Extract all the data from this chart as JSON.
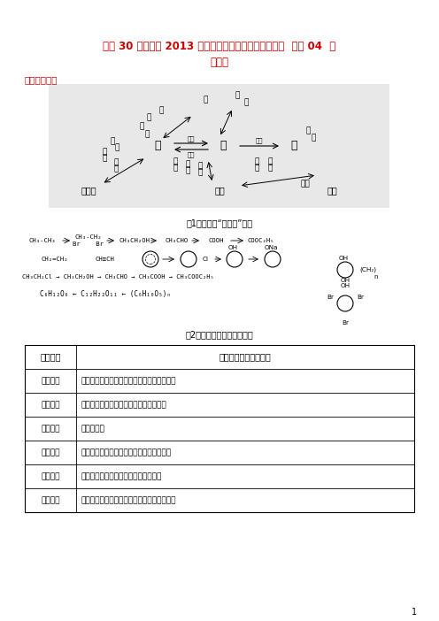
{
  "title_line1": "考前 30 天之备战 2013 高考化学冲刺押题系列第四部分  专题 04  有",
  "title_line2": "机化学",
  "section_header": "结构网络图解",
  "fig1_caption": "图1有机物的“金三角”地带",
  "fig2_caption": "图2有机物代表物的衍变关系",
  "table_header_col1": "反应类型",
  "table_header_col2": "涉及的主要有机物类别",
  "table_rows": [
    [
      "取代反应",
      "饱和烃、苯和苯的同系物、醇、苯酚、卦代烃"
    ],
    [
      "加成反应",
      "不饱和烃、苯和苯的同系物、醉、葡萄糖"
    ],
    [
      "消去反应",
      "醇、卦代烃"
    ],
    [
      "酯化反应",
      "醇、羲酸、糖类（葡萄糖、淠粉、纤维素）"
    ],
    [
      "水解反应",
      "卦代烃、羲酸酯、二糖、多糖、蛋白质"
    ],
    [
      "氧化反应",
      "不饱和烃、烃基苯、醇、醉、甲酸酯、葡萄糖"
    ]
  ],
  "title_color": "#cc0000",
  "section_color": "#cc0000",
  "bg_color": "#ffffff",
  "page_number": "1"
}
